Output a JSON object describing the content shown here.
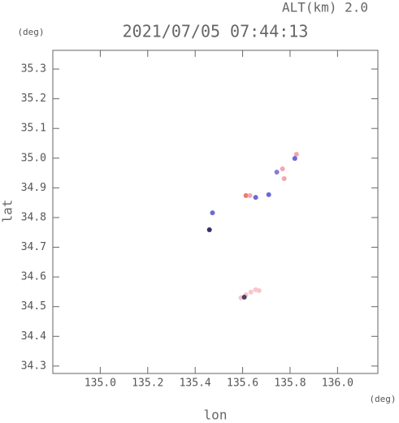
{
  "chart_data": {
    "type": "scatter",
    "title": "2021/07/05 07:44:13",
    "annotation": "ALT(km) 2.0",
    "y_unit": "(deg)",
    "x_unit": "(deg)",
    "x_label": "lon",
    "y_label": "lat",
    "x": [
      135.614,
      135.631,
      135.655,
      135.71,
      135.473,
      135.46,
      135.744,
      135.768,
      135.775,
      135.827,
      135.82,
      135.593,
      135.614,
      135.635,
      135.655,
      135.669,
      135.607
    ],
    "values": [
      34.874,
      34.874,
      34.868,
      34.877,
      34.816,
      34.759,
      34.953,
      34.964,
      34.931,
      35.013,
      34.999,
      34.53,
      34.54,
      34.549,
      34.557,
      34.554,
      34.532
    ],
    "colors": [
      "#f07a6a",
      "#f4a6b4",
      "#6a6ad8",
      "#6a6ad8",
      "#6a6ad8",
      "#333366",
      "#8a7ad8",
      "#f4a6b4",
      "#f4a6b4",
      "#f4a6b4",
      "#6a6ad8",
      "#f9c4cc",
      "#f9c4cc",
      "#f9c4cc",
      "#f9c4cc",
      "#f9c4cc",
      "#444466"
    ],
    "xlim": [
      134.8,
      136.17
    ],
    "ylim": [
      34.275,
      35.363
    ],
    "xticks": [
      {
        "value": 135,
        "label": "135.0"
      },
      135.2,
      135.4,
      135.6,
      135.8,
      {
        "value": 136,
        "label": "136.0"
      }
    ],
    "yticks": [
      34.3,
      34.4,
      34.5,
      34.6,
      34.7,
      34.8,
      34.9,
      {
        "value": 35,
        "label": "35.0"
      },
      35.1,
      35.2,
      35.3
    ]
  }
}
